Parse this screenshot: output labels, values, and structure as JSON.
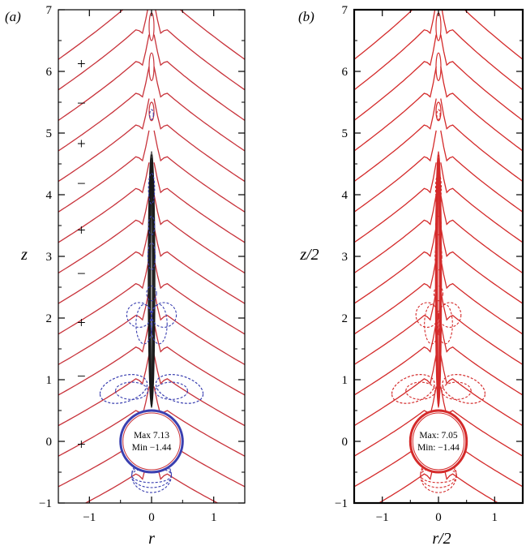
{
  "chart_data": [
    {
      "type": "contour",
      "panel_label": "(a)",
      "xlabel": "r",
      "ylabel": "z",
      "xlim": [
        -1.5,
        1.5
      ],
      "ylim": [
        -1,
        7
      ],
      "xticks": [
        {
          "value": -1,
          "label": "−1"
        },
        {
          "value": 0,
          "label": "0"
        },
        {
          "value": 1,
          "label": "1"
        }
      ],
      "yticks": [
        {
          "value": -1,
          "label": "−1"
        },
        {
          "value": 0,
          "label": "0"
        },
        {
          "value": 1,
          "label": "1"
        },
        {
          "value": 2,
          "label": "2"
        },
        {
          "value": 3,
          "label": "3"
        },
        {
          "value": 4,
          "label": "4"
        },
        {
          "value": 5,
          "label": "5"
        },
        {
          "value": 6,
          "label": "6"
        },
        {
          "value": 7,
          "label": "7"
        }
      ],
      "sphere": {
        "center_r": 0,
        "center_z": 0,
        "radius": 0.5
      },
      "annotation": {
        "max": "Max 7.13",
        "min": "Min −1.44"
      },
      "sign_labels": [
        {
          "r": -1.13,
          "z": 6.12,
          "text": "+"
        },
        {
          "r": -1.13,
          "z": 5.48,
          "text": "−"
        },
        {
          "r": -1.13,
          "z": 4.82,
          "text": "+"
        },
        {
          "r": -1.13,
          "z": 4.18,
          "text": "−"
        },
        {
          "r": -1.13,
          "z": 3.42,
          "text": "+"
        },
        {
          "r": -1.13,
          "z": 2.72,
          "text": "−"
        },
        {
          "r": -1.13,
          "z": 1.92,
          "text": "+"
        },
        {
          "r": -1.13,
          "z": 1.05,
          "text": "−"
        },
        {
          "r": -1.13,
          "z": -0.05,
          "text": "+"
        }
      ],
      "colors": {
        "positive": "#c8323a",
        "negative": "#3a3fb0",
        "core": "#1a1a1a"
      },
      "grid": false
    },
    {
      "type": "contour",
      "panel_label": "(b)",
      "xlabel": "r/2",
      "ylabel": "z/2",
      "xlim": [
        -1.5,
        1.5
      ],
      "ylim": [
        -1,
        7
      ],
      "xticks": [
        {
          "value": -1,
          "label": "−1"
        },
        {
          "value": 0,
          "label": "0"
        },
        {
          "value": 1,
          "label": "1"
        }
      ],
      "yticks": [
        {
          "value": -1,
          "label": "−1"
        },
        {
          "value": 0,
          "label": "0"
        },
        {
          "value": 1,
          "label": "1"
        },
        {
          "value": 2,
          "label": "2"
        },
        {
          "value": 3,
          "label": "3"
        },
        {
          "value": 4,
          "label": "4"
        },
        {
          "value": 5,
          "label": "5"
        },
        {
          "value": 6,
          "label": "6"
        },
        {
          "value": 7,
          "label": "7"
        }
      ],
      "sphere": {
        "center_r": 0,
        "center_z": 0,
        "radius": 0.5
      },
      "annotation": {
        "max": "Max: 7.05",
        "min": "Min: −1.44"
      },
      "sign_labels": [],
      "colors": {
        "positive": "#d42a2a",
        "negative": "#d42a2a",
        "core": "#d42a2a"
      },
      "grid": false
    }
  ]
}
